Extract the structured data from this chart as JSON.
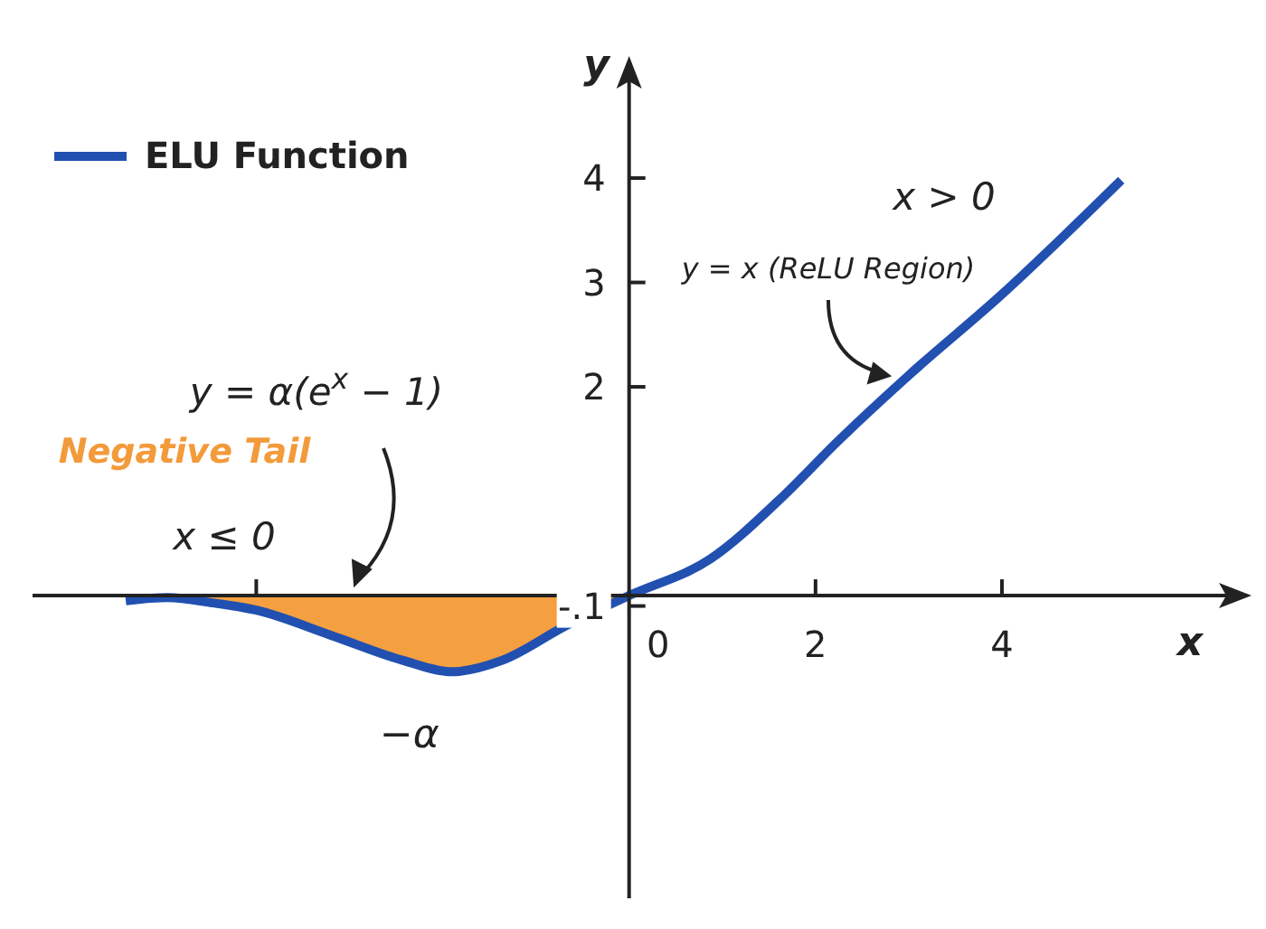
{
  "chart_data": {
    "type": "line",
    "xlabel": "x",
    "ylabel": "y",
    "x": [
      -5.4,
      -4.95,
      -4.47,
      -4,
      -3.2,
      -2.43,
      -1.9,
      -1.36,
      -0.68,
      0,
      0.87,
      1.65,
      2.23,
      3.0,
      3.98,
      5.28
    ],
    "series": [
      {
        "type": "area",
        "color": "#f5a040",
        "x": [
          -5.4,
          -4.95,
          -4.47,
          -4,
          -3.2,
          -2.43,
          -1.9,
          -1.36,
          -0.68,
          0
        ],
        "values": [
          -0.05,
          -0.02,
          -0.07,
          -0.14,
          -0.38,
          -0.62,
          -0.73,
          -0.62,
          -0.29,
          0
        ]
      },
      {
        "name": "ELU Function",
        "color": "#2150b0",
        "values": [
          -0.05,
          -0.02,
          -0.07,
          -0.14,
          -0.38,
          -0.62,
          -0.73,
          -0.62,
          -0.29,
          0,
          0.35,
          0.95,
          1.47,
          2.11,
          2.87,
          3.98
        ]
      }
    ],
    "xlim": [
      -6.4,
      6.6
    ],
    "ylim": [
      -2.9,
      5.1
    ],
    "xticks": [
      {
        "value": -4,
        "label": null
      },
      0,
      2,
      4
    ],
    "yticks": [
      {
        "value": -0.1,
        "label": "-.1"
      },
      2,
      3,
      4
    ],
    "annotations": [
      "y = α(e$^{x}$ − 1)",
      "Negative Tail",
      "x ≤ 0",
      {
        "text": "−α",
        "x": -1.9,
        "y": -0.73
      },
      "x > 0",
      "y = x (ReLU Region)"
    ],
    "legend": "top left",
    "grid": false,
    "marker": "none",
    "line_style": "solid"
  }
}
